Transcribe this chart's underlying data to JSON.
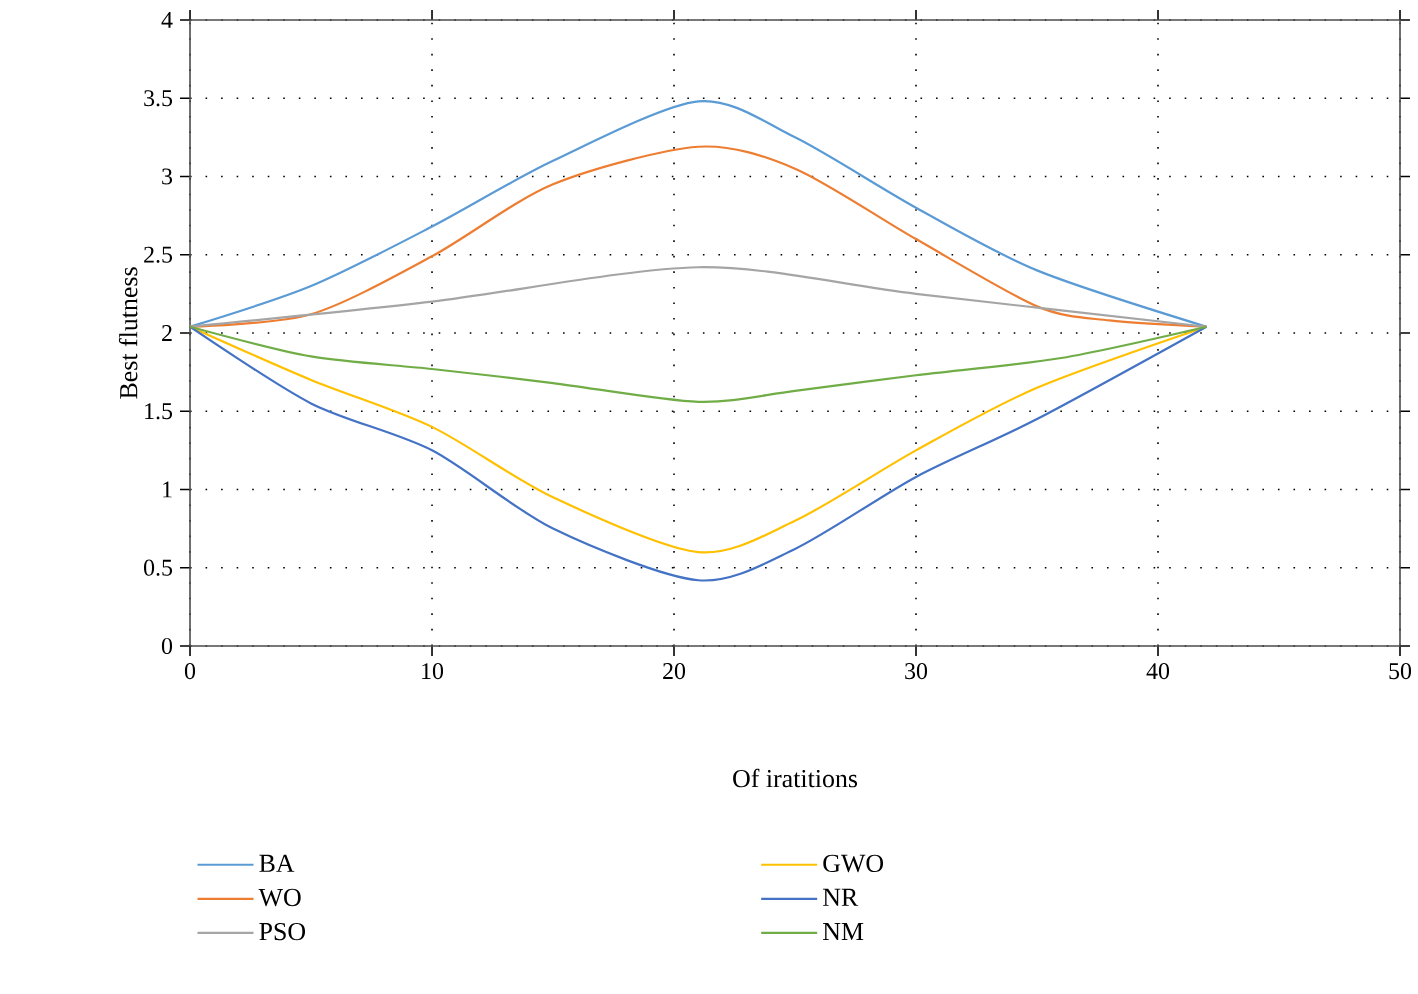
{
  "chart_data": {
    "type": "line",
    "xlabel": "Of iratitions",
    "ylabel": "Best flutness",
    "xlim": [
      0,
      50
    ],
    "xticks": [
      0,
      10,
      20,
      30,
      40,
      50
    ],
    "ylim": [
      0,
      4
    ],
    "yticks": [
      0,
      0.5,
      1,
      1.5,
      2,
      2.5,
      3,
      3.5,
      4
    ],
    "grid": true,
    "legend": "bottom",
    "marker": "none",
    "line_style": "solid",
    "series": [
      {
        "name": "BA",
        "color": "#5b9bd5",
        "x": [
          0,
          5,
          10,
          15,
          21,
          25,
          30,
          35,
          42
        ],
        "values": [
          2.04,
          2.3,
          2.68,
          3.1,
          3.48,
          3.25,
          2.8,
          2.4,
          2.04
        ]
      },
      {
        "name": "WO",
        "color": "#ed7d31",
        "x": [
          0,
          5,
          10,
          15,
          21,
          25,
          30,
          35,
          38,
          42
        ],
        "values": [
          2.04,
          2.12,
          2.49,
          2.95,
          3.19,
          3.05,
          2.6,
          2.17,
          2.08,
          2.04
        ]
      },
      {
        "name": "PSO",
        "color": "#a5a5a5",
        "x": [
          0,
          10,
          21,
          30,
          42
        ],
        "values": [
          2.04,
          2.2,
          2.42,
          2.25,
          2.04
        ]
      },
      {
        "name": "GWO",
        "color": "#ffc000",
        "x": [
          0,
          5,
          10,
          15,
          21,
          25,
          30,
          35,
          42
        ],
        "values": [
          2.04,
          1.7,
          1.4,
          0.95,
          0.6,
          0.8,
          1.25,
          1.65,
          2.04
        ]
      },
      {
        "name": "NR",
        "color": "#4472c4",
        "x": [
          0,
          5,
          10,
          15,
          21,
          25,
          30,
          35,
          42
        ],
        "values": [
          2.04,
          1.55,
          1.25,
          0.75,
          0.42,
          0.62,
          1.08,
          1.45,
          2.04
        ]
      },
      {
        "name": "NM",
        "color": "#70ad47",
        "x": [
          0,
          5,
          10,
          15,
          21,
          25,
          30,
          36,
          42
        ],
        "values": [
          2.04,
          1.85,
          1.77,
          1.68,
          1.56,
          1.63,
          1.73,
          1.84,
          2.04
        ]
      }
    ]
  }
}
